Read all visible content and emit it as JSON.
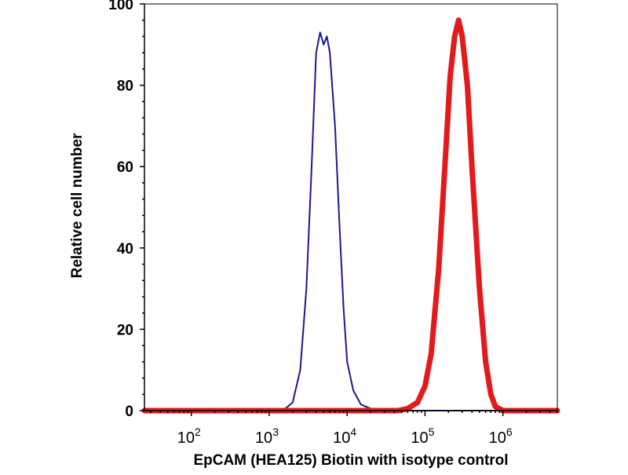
{
  "chart_data": {
    "type": "line",
    "title": "",
    "xlabel": "EpCAM (HEA125) Biotin with isotype control",
    "ylabel": "Relative cell number",
    "x_scale": "log",
    "xlim": [
      25,
      5000000
    ],
    "ylim": [
      0,
      100
    ],
    "grid": false,
    "legend": "none",
    "y_ticks": [
      0,
      20,
      40,
      60,
      80,
      100
    ],
    "y_tick_labels": [
      "0",
      "20",
      "40",
      "60",
      "80",
      "100"
    ],
    "x_ticks": [
      100,
      1000,
      10000,
      100000,
      1000000
    ],
    "x_tick_labels": [
      {
        "base": "10",
        "exp": "2"
      },
      {
        "base": "10",
        "exp": "3"
      },
      {
        "base": "10",
        "exp": "4"
      },
      {
        "base": "10",
        "exp": "5"
      },
      {
        "base": "10",
        "exp": "6"
      }
    ],
    "series": [
      {
        "color": "#1a1a8c",
        "x": [
          25,
          1500,
          2000,
          2500,
          3000,
          3500,
          4000,
          4500,
          5000,
          5500,
          6000,
          7000,
          8000,
          9000,
          10000,
          12000,
          15000,
          20000,
          25000,
          5000000
        ],
        "y": [
          0,
          0,
          2,
          10,
          30,
          60,
          88,
          93,
          90,
          92,
          88,
          70,
          45,
          25,
          12,
          5,
          1.5,
          0.5,
          0,
          0
        ]
      },
      {
        "color": "#e31a1c",
        "x": [
          25,
          45000,
          60000,
          80000,
          100000,
          120000,
          150000,
          180000,
          210000,
          240000,
          270000,
          300000,
          350000,
          400000,
          500000,
          600000,
          700000,
          800000,
          1000000,
          5000000
        ],
        "y": [
          0,
          0,
          0.5,
          2,
          6,
          14,
          35,
          60,
          82,
          92,
          96,
          92,
          80,
          60,
          30,
          12,
          4,
          1,
          0,
          0
        ]
      }
    ]
  }
}
